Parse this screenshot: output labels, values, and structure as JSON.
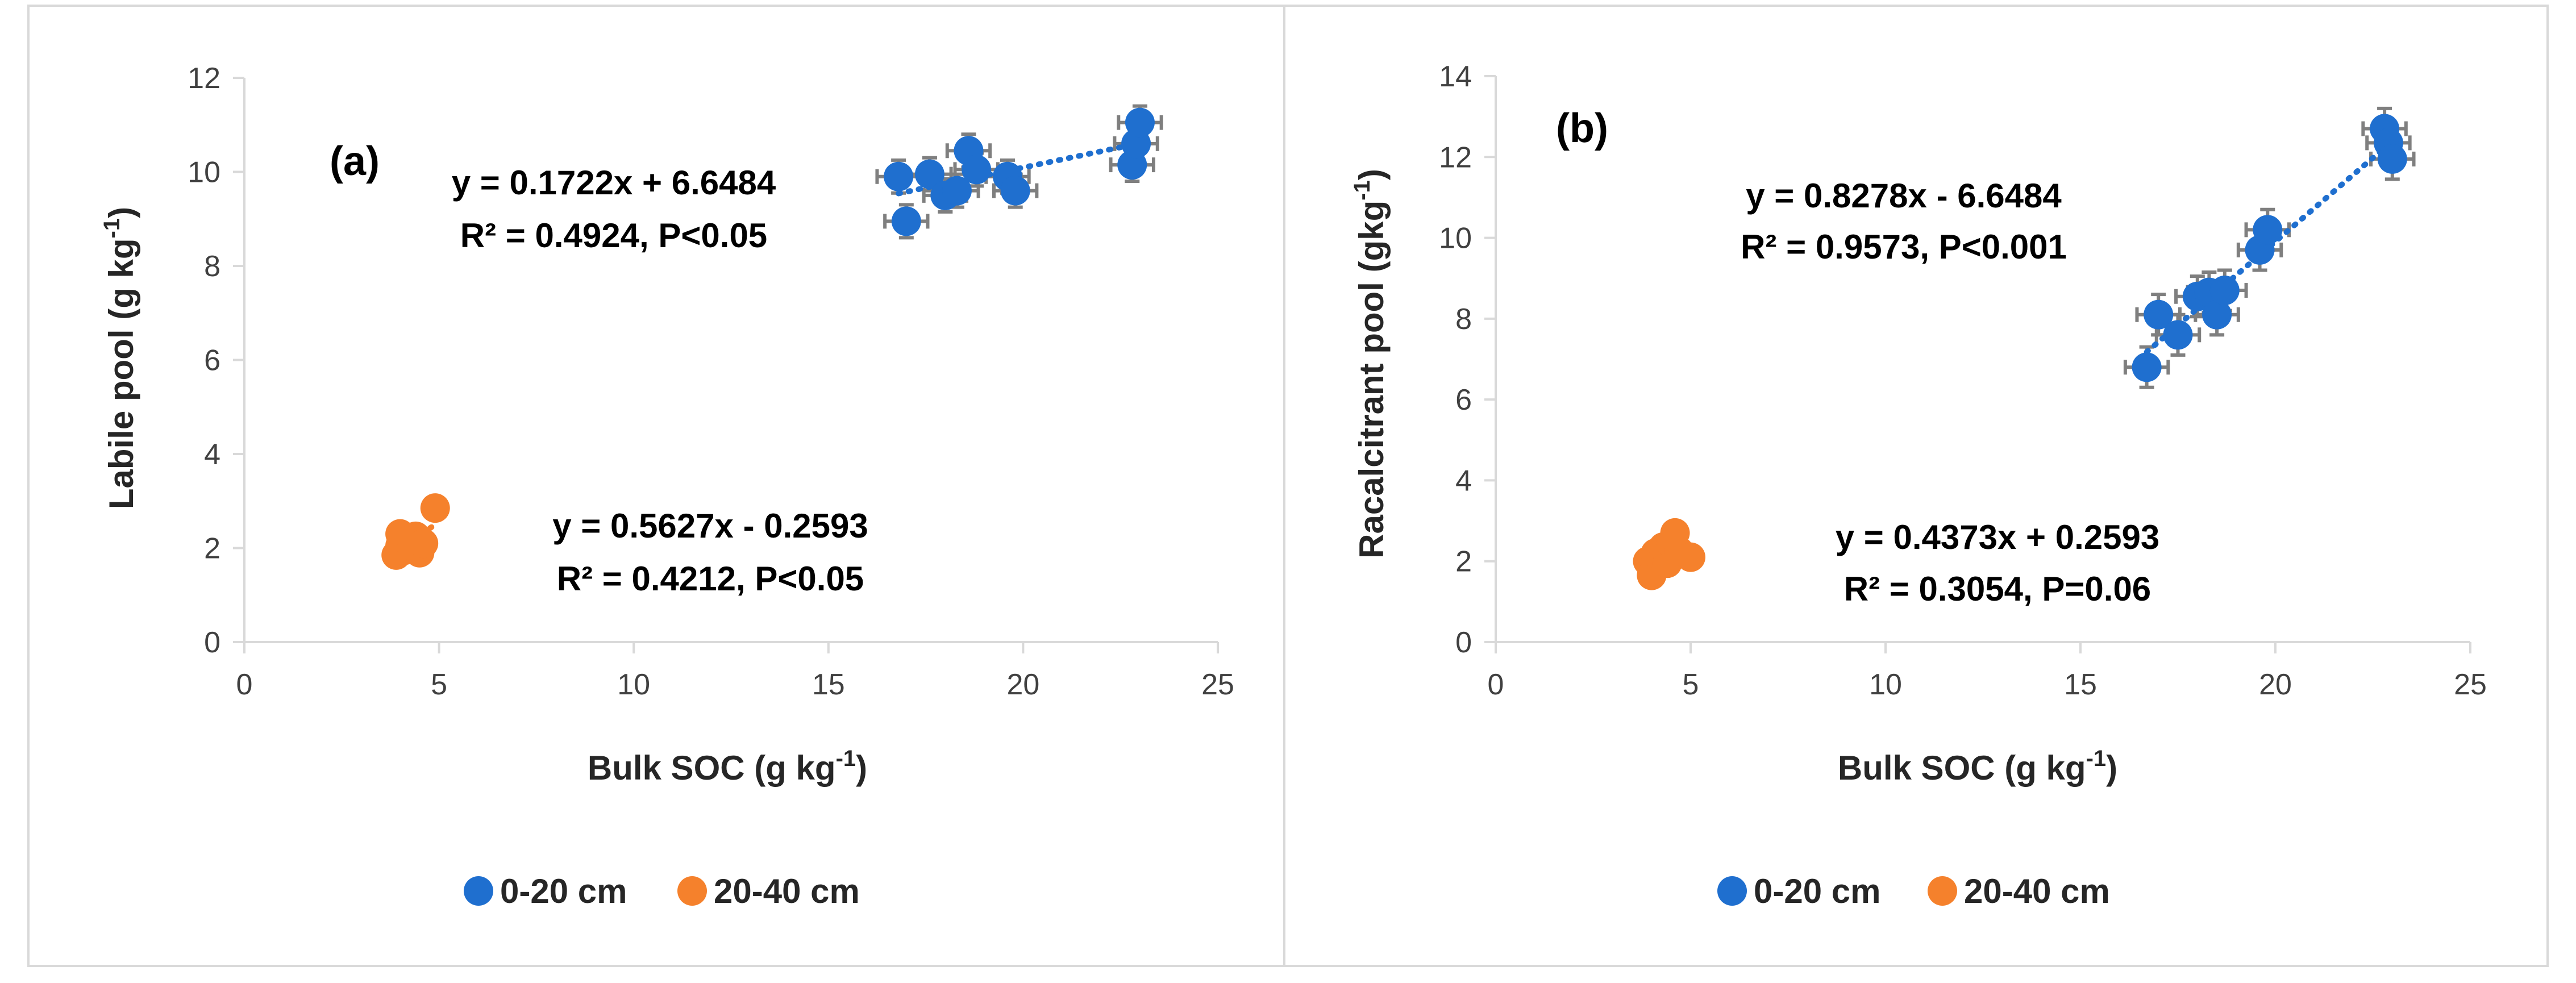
{
  "colors": {
    "series_0_20": "#1f6fcf",
    "series_20_40": "#f5812c",
    "error_bar": "#7f7f7f",
    "border": "#d9d9d9"
  },
  "chart_data": [
    {
      "panel_label": "(a)",
      "type": "scatter",
      "xlabel": "Bulk SOC (g kg",
      "xlabel_sup": "-1",
      "xlabel_end": ")",
      "ylabel": "Labile pool (g kg",
      "ylabel_sup": "-1",
      "ylabel_end": ")",
      "xlim": [
        0,
        25
      ],
      "ylim": [
        0,
        12
      ],
      "xticks": [
        "0",
        "5",
        "10",
        "15",
        "20",
        "25"
      ],
      "yticks": [
        "0",
        "2",
        "4",
        "6",
        "8",
        "10",
        "12"
      ],
      "xtick_values": [
        0,
        5,
        10,
        15,
        20,
        25
      ],
      "ytick_values": [
        0,
        2,
        4,
        6,
        8,
        10,
        12
      ],
      "legend": [
        "0-20 cm",
        "20-40 cm"
      ],
      "series": [
        {
          "name": "0-20 cm",
          "color_key": "series_0_20",
          "points": [
            [
              16.8,
              9.9
            ],
            [
              17.0,
              8.95
            ],
            [
              17.6,
              9.95
            ],
            [
              18.0,
              9.5
            ],
            [
              18.3,
              9.6
            ],
            [
              18.6,
              10.45
            ],
            [
              18.8,
              10.05
            ],
            [
              19.6,
              9.9
            ],
            [
              19.8,
              9.6
            ],
            [
              22.8,
              10.15
            ],
            [
              22.9,
              10.6
            ],
            [
              23.0,
              11.05
            ]
          ],
          "x_err": 0.55,
          "y_err": 0.35,
          "trend": {
            "slope": 0.1722,
            "intercept": 6.6484,
            "x_range": [
              16.8,
              23.0
            ]
          },
          "equation": "y = 0.1722x + 6.6484",
          "r2_text": "R² = 0.4924, P<0.05"
        },
        {
          "name": "20-40 cm",
          "color_key": "series_20_40",
          "points": [
            [
              3.9,
              1.85
            ],
            [
              4.0,
              2.05
            ],
            [
              4.0,
              2.3
            ],
            [
              4.1,
              1.95
            ],
            [
              4.2,
              2.15
            ],
            [
              4.3,
              2.0
            ],
            [
              4.4,
              2.25
            ],
            [
              4.5,
              1.9
            ],
            [
              4.6,
              2.1
            ],
            [
              4.9,
              2.85
            ]
          ],
          "trend": {
            "slope": 0.5627,
            "intercept": -0.2593,
            "x_range": [
              3.9,
              4.9
            ]
          },
          "equation": "y = 0.5627x - 0.2593",
          "r2_text": "R² = 0.4212, P<0.05"
        }
      ]
    },
    {
      "panel_label": "(b)",
      "type": "scatter",
      "xlabel": "Bulk SOC (g kg",
      "xlabel_sup": "-1",
      "xlabel_end": ")",
      "ylabel": "Racalcitrant pool (gkg",
      "ylabel_sup": "-1",
      "ylabel_end": ")",
      "xlim": [
        0,
        25
      ],
      "ylim": [
        0,
        14
      ],
      "xticks": [
        "0",
        "5",
        "10",
        "15",
        "20",
        "25"
      ],
      "yticks": [
        "0",
        "2",
        "4",
        "6",
        "8",
        "10",
        "12",
        "14"
      ],
      "xtick_values": [
        0,
        5,
        10,
        15,
        20,
        25
      ],
      "ytick_values": [
        0,
        2,
        4,
        6,
        8,
        10,
        12,
        14
      ],
      "legend": [
        "0-20 cm",
        "20-40 cm"
      ],
      "series": [
        {
          "name": "0-20 cm",
          "color_key": "series_0_20",
          "points": [
            [
              16.7,
              6.8
            ],
            [
              17.0,
              8.1
            ],
            [
              17.5,
              7.6
            ],
            [
              18.0,
              8.55
            ],
            [
              18.3,
              8.65
            ],
            [
              18.5,
              8.1
            ],
            [
              18.7,
              8.7
            ],
            [
              19.6,
              9.7
            ],
            [
              19.8,
              10.2
            ],
            [
              22.8,
              12.7
            ],
            [
              22.9,
              12.35
            ],
            [
              23.0,
              11.95
            ]
          ],
          "x_err": 0.55,
          "y_err": 0.5,
          "trend": {
            "slope": 0.8278,
            "intercept": -6.6484,
            "x_range": [
              16.7,
              22.9
            ]
          },
          "equation": "y = 0.8278x - 6.6484",
          "r2_text": "R² = 0.9573, P<0.001"
        },
        {
          "name": "20-40 cm",
          "color_key": "series_20_40",
          "points": [
            [
              3.9,
              2.0
            ],
            [
              4.0,
              1.65
            ],
            [
              4.1,
              2.2
            ],
            [
              4.3,
              2.35
            ],
            [
              4.4,
              1.95
            ],
            [
              4.5,
              2.45
            ],
            [
              4.6,
              2.7
            ],
            [
              4.7,
              2.25
            ],
            [
              5.0,
              2.1
            ]
          ],
          "trend": {
            "slope": 0.4373,
            "intercept": 0.2593,
            "x_range": [
              3.9,
              5.0
            ]
          },
          "equation": "y = 0.4373x + 0.2593",
          "r2_text": "R² = 0.3054, P=0.06"
        }
      ]
    }
  ]
}
